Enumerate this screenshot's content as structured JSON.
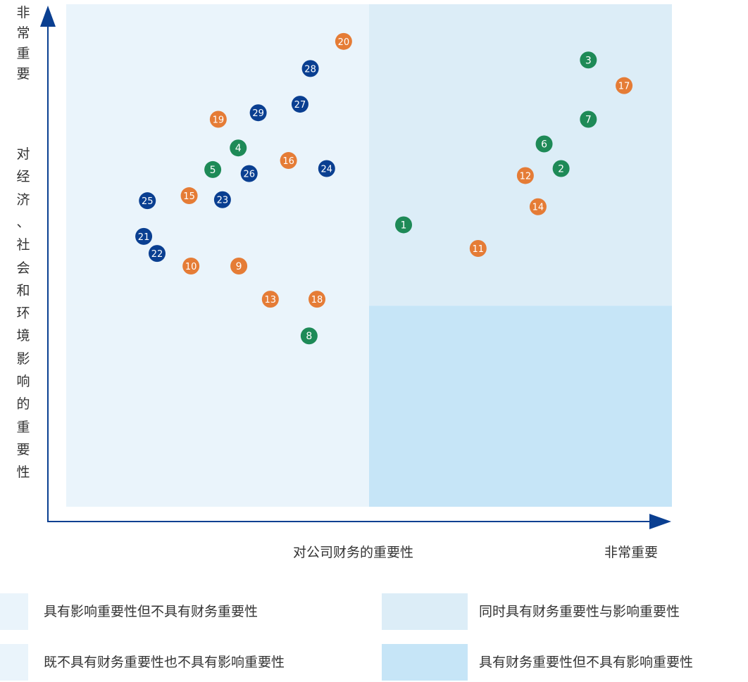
{
  "chart_data": {
    "type": "scatter",
    "title": "",
    "xlabel": "对公司财务的重要性",
    "xlabel_end": "非常重要",
    "ylabel": "对经济、社会和环境影响的重要性",
    "ylabel_end": "非常重要",
    "xlim": [
      0,
      100
    ],
    "ylim": [
      0,
      100
    ],
    "grid": false,
    "quadrant_split": {
      "x": 50,
      "y": 40
    },
    "quadrant_colors": {
      "top_left": "#eaf4fb",
      "top_right": "#dcedf7",
      "bottom_left": "#eaf4fb",
      "bottom_right": "#c6e5f7"
    },
    "series": [
      {
        "color": "#1e8a57",
        "points": [
          {
            "label": "1",
            "x": 55.7,
            "y": 56.1
          },
          {
            "label": "2",
            "x": 81.7,
            "y": 67.3
          },
          {
            "label": "3",
            "x": 86.2,
            "y": 88.9
          },
          {
            "label": "4",
            "x": 28.4,
            "y": 71.4
          },
          {
            "label": "5",
            "x": 24.2,
            "y": 67.1
          },
          {
            "label": "6",
            "x": 78.9,
            "y": 72.2
          },
          {
            "label": "7",
            "x": 86.2,
            "y": 77.1
          },
          {
            "label": "8",
            "x": 40.1,
            "y": 34.0
          }
        ]
      },
      {
        "color": "#e57c36",
        "points": [
          {
            "label": "9",
            "x": 28.5,
            "y": 47.9
          },
          {
            "label": "10",
            "x": 20.6,
            "y": 47.9
          },
          {
            "label": "11",
            "x": 68.0,
            "y": 51.4
          },
          {
            "label": "12",
            "x": 75.8,
            "y": 65.9
          },
          {
            "label": "13",
            "x": 33.7,
            "y": 41.3
          },
          {
            "label": "14",
            "x": 77.9,
            "y": 59.7
          },
          {
            "label": "15",
            "x": 20.3,
            "y": 61.9
          },
          {
            "label": "16",
            "x": 36.7,
            "y": 68.9
          },
          {
            "label": "17",
            "x": 92.1,
            "y": 83.8
          },
          {
            "label": "18",
            "x": 41.4,
            "y": 41.3
          },
          {
            "label": "19",
            "x": 25.1,
            "y": 77.1
          },
          {
            "label": "20",
            "x": 45.8,
            "y": 92.6
          }
        ]
      },
      {
        "color": "#0a3f91",
        "points": [
          {
            "label": "21",
            "x": 12.8,
            "y": 53.8
          },
          {
            "label": "22",
            "x": 15.0,
            "y": 50.4
          },
          {
            "label": "23",
            "x": 25.8,
            "y": 61.1
          },
          {
            "label": "24",
            "x": 43.0,
            "y": 67.3
          },
          {
            "label": "25",
            "x": 13.4,
            "y": 60.9
          },
          {
            "label": "26",
            "x": 30.2,
            "y": 66.3
          },
          {
            "label": "27",
            "x": 38.6,
            "y": 80.1
          },
          {
            "label": "28",
            "x": 40.3,
            "y": 87.2
          },
          {
            "label": "29",
            "x": 31.7,
            "y": 78.4
          }
        ]
      }
    ]
  },
  "legend": [
    {
      "label": "具有影响重要性但不具有财务重要性",
      "color": "#eaf4fb"
    },
    {
      "label": "同时具有财务重要性与影响重要性",
      "color": "#dcedf7"
    },
    {
      "label": "既不具有财务重要性也不具有影响重要性",
      "color": "#eaf4fb"
    },
    {
      "label": "具有财务重要性但不具有影响重要性",
      "color": "#c6e5f7"
    }
  ],
  "axis_color": "#0a3f91"
}
